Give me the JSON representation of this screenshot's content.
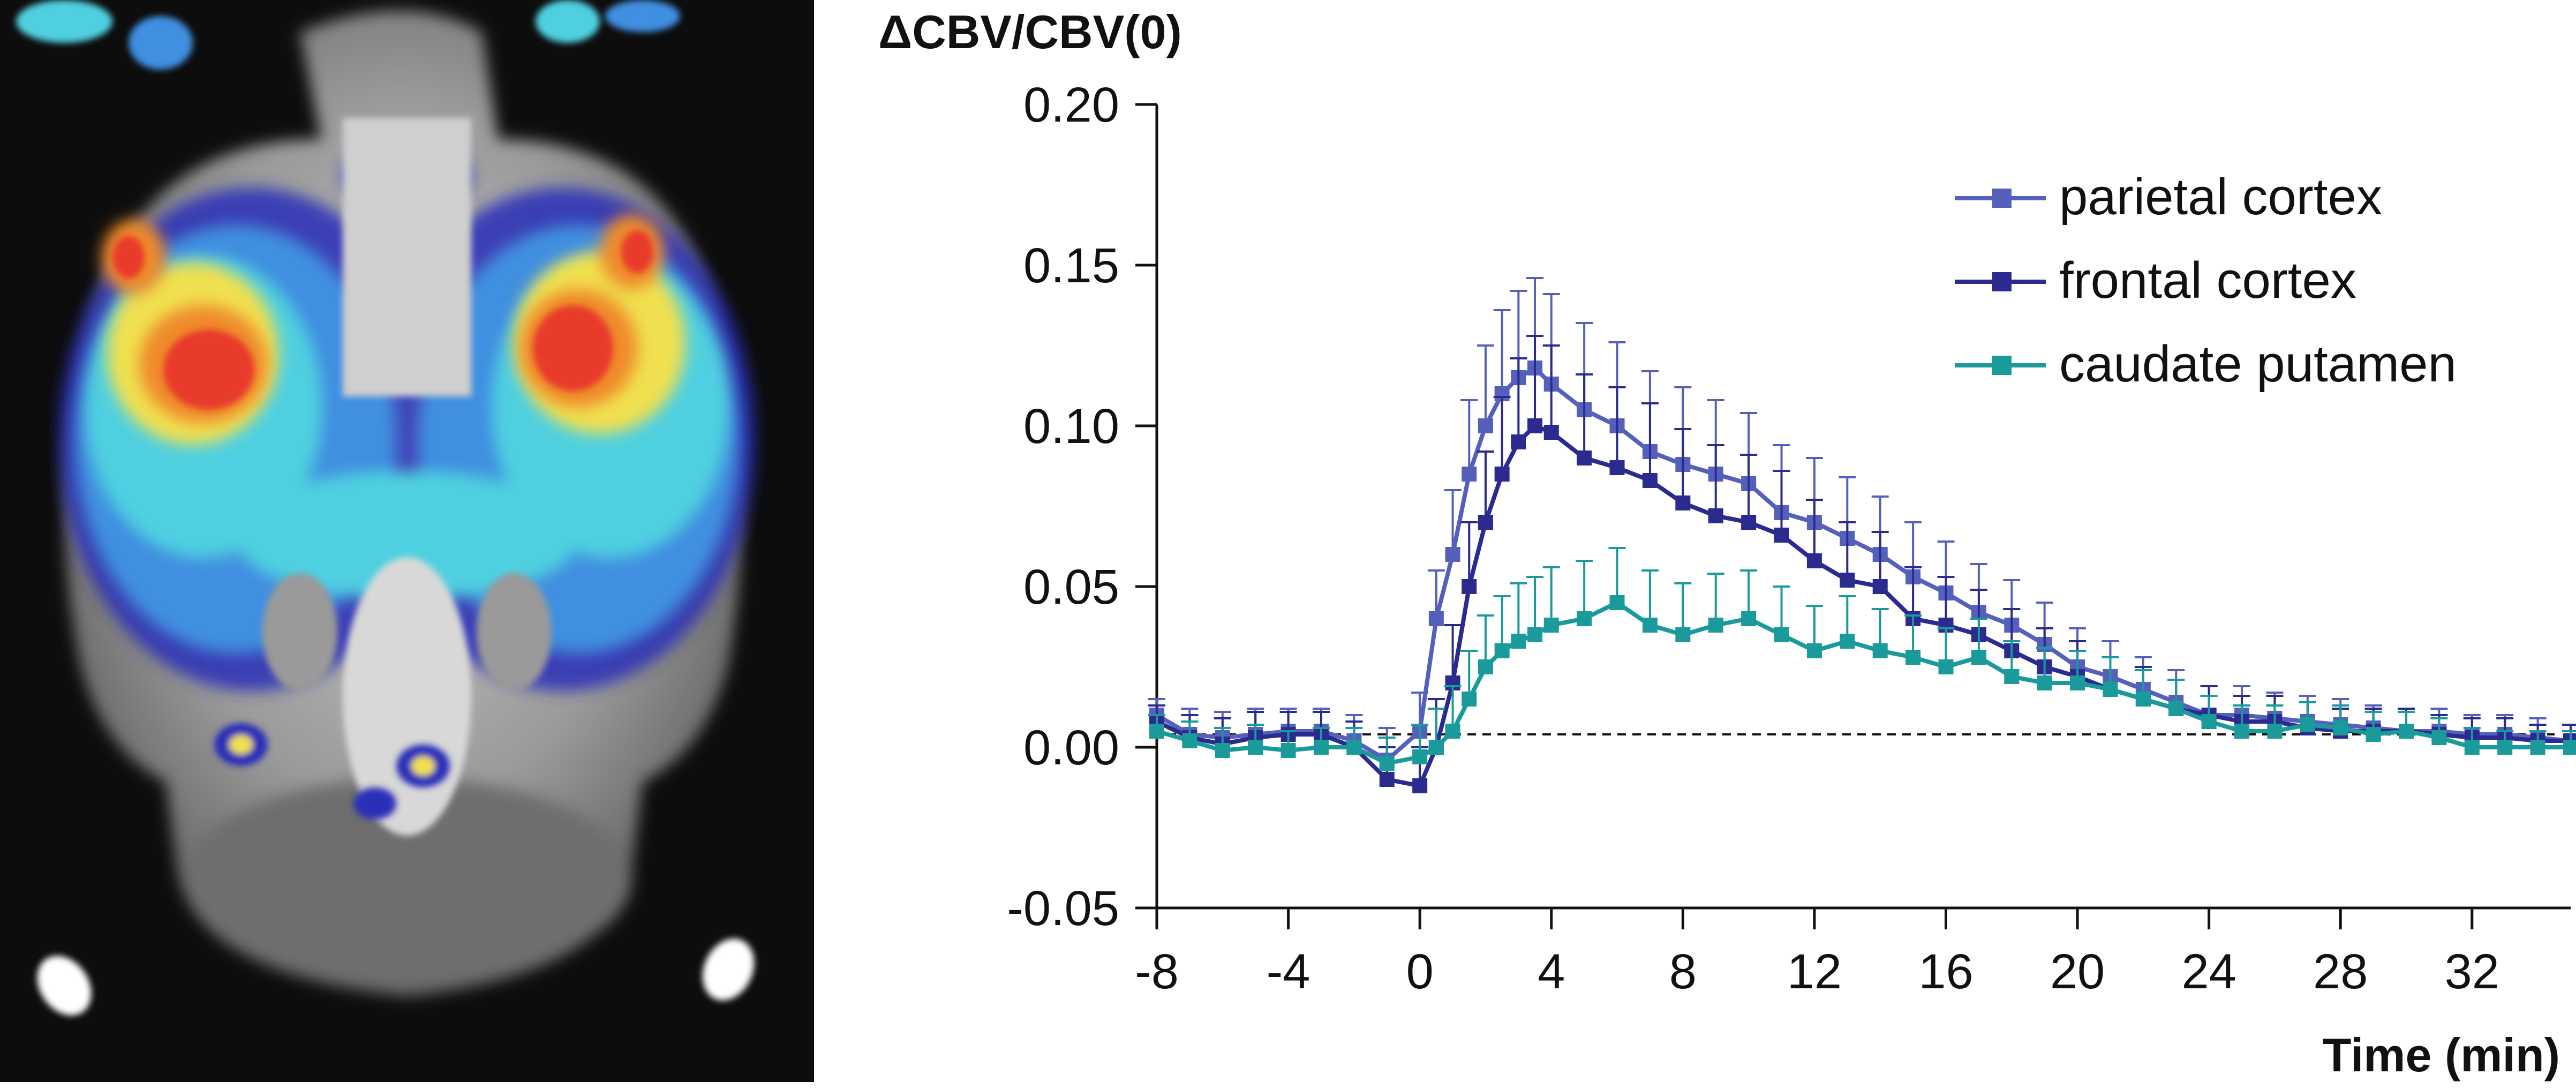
{
  "chart_data": {
    "type": "line",
    "ylabel": "ΔCBV/CBV(0)",
    "xlabel": "Time (min)",
    "xlim": [
      -8,
      35
    ],
    "ylim": [
      -0.05,
      0.2
    ],
    "xticks": [
      -8,
      -4,
      0,
      4,
      8,
      12,
      16,
      20,
      24,
      28,
      32
    ],
    "xtick_labels": [
      "-8",
      "-4",
      "0",
      "4",
      "8",
      "12",
      "16",
      "20",
      "24",
      "28",
      "32"
    ],
    "yticks": [
      -0.05,
      0.0,
      0.05,
      0.1,
      0.15,
      0.2
    ],
    "ytick_labels": [
      "-0.05",
      "0.00",
      "0.05",
      "0.10",
      "0.15",
      "0.20"
    ],
    "baseline": 0.004,
    "legend_position": "top-right",
    "grid": false,
    "series": [
      {
        "name": "parietal cortex",
        "color": "#5560bb",
        "points": [
          [
            -8,
            0.01
          ],
          [
            -7,
            0.004
          ],
          [
            -6,
            0.003
          ],
          [
            -5,
            0.004
          ],
          [
            -4,
            0.005
          ],
          [
            -3,
            0.005
          ],
          [
            -2,
            0.002
          ],
          [
            -1,
            -0.004
          ],
          [
            0,
            0.005
          ],
          [
            0.5,
            0.04
          ],
          [
            1,
            0.06
          ],
          [
            1.5,
            0.085
          ],
          [
            2,
            0.1
          ],
          [
            2.5,
            0.11
          ],
          [
            3,
            0.115
          ],
          [
            3.5,
            0.118
          ],
          [
            4,
            0.113
          ],
          [
            5,
            0.105
          ],
          [
            6,
            0.1
          ],
          [
            7,
            0.092
          ],
          [
            8,
            0.088
          ],
          [
            9,
            0.085
          ],
          [
            10,
            0.082
          ],
          [
            11,
            0.073
          ],
          [
            12,
            0.07
          ],
          [
            13,
            0.065
          ],
          [
            14,
            0.06
          ],
          [
            15,
            0.053
          ],
          [
            16,
            0.048
          ],
          [
            17,
            0.042
          ],
          [
            18,
            0.038
          ],
          [
            19,
            0.032
          ],
          [
            20,
            0.025
          ],
          [
            21,
            0.022
          ],
          [
            22,
            0.018
          ],
          [
            23,
            0.014
          ],
          [
            24,
            0.01
          ],
          [
            25,
            0.01
          ],
          [
            26,
            0.009
          ],
          [
            27,
            0.008
          ],
          [
            28,
            0.007
          ],
          [
            29,
            0.006
          ],
          [
            30,
            0.005
          ],
          [
            31,
            0.005
          ],
          [
            32,
            0.004
          ],
          [
            33,
            0.004
          ],
          [
            34,
            0.003
          ],
          [
            35,
            0.002
          ]
        ],
        "errors": [
          0.005,
          0.008,
          0.008,
          0.008,
          0.007,
          0.007,
          0.008,
          0.01,
          0.012,
          0.015,
          0.02,
          0.023,
          0.025,
          0.026,
          0.027,
          0.028,
          0.028,
          0.027,
          0.026,
          0.025,
          0.024,
          0.023,
          0.022,
          0.021,
          0.02,
          0.019,
          0.018,
          0.017,
          0.016,
          0.015,
          0.014,
          0.013,
          0.012,
          0.011,
          0.01,
          0.01,
          0.009,
          0.009,
          0.008,
          0.008,
          0.008,
          0.007,
          0.007,
          0.007,
          0.006,
          0.006,
          0.006,
          0.005
        ]
      },
      {
        "name": "frontal cortex",
        "color": "#2a2a8f",
        "points": [
          [
            -8,
            0.008
          ],
          [
            -7,
            0.003
          ],
          [
            -6,
            0.001
          ],
          [
            -5,
            0.003
          ],
          [
            -4,
            0.004
          ],
          [
            -3,
            0.004
          ],
          [
            -2,
            0.0
          ],
          [
            -1,
            -0.01
          ],
          [
            0,
            -0.012
          ],
          [
            0.5,
            0.0
          ],
          [
            1,
            0.02
          ],
          [
            1.5,
            0.05
          ],
          [
            2,
            0.07
          ],
          [
            2.5,
            0.085
          ],
          [
            3,
            0.095
          ],
          [
            3.5,
            0.1
          ],
          [
            4,
            0.098
          ],
          [
            5,
            0.09
          ],
          [
            6,
            0.087
          ],
          [
            7,
            0.083
          ],
          [
            8,
            0.076
          ],
          [
            9,
            0.072
          ],
          [
            10,
            0.07
          ],
          [
            11,
            0.066
          ],
          [
            12,
            0.058
          ],
          [
            13,
            0.052
          ],
          [
            14,
            0.05
          ],
          [
            15,
            0.04
          ],
          [
            16,
            0.038
          ],
          [
            17,
            0.035
          ],
          [
            18,
            0.03
          ],
          [
            19,
            0.025
          ],
          [
            20,
            0.022
          ],
          [
            21,
            0.018
          ],
          [
            22,
            0.015
          ],
          [
            23,
            0.012
          ],
          [
            24,
            0.01
          ],
          [
            25,
            0.008
          ],
          [
            26,
            0.008
          ],
          [
            27,
            0.006
          ],
          [
            28,
            0.005
          ],
          [
            29,
            0.005
          ],
          [
            30,
            0.005
          ],
          [
            31,
            0.004
          ],
          [
            32,
            0.003
          ],
          [
            33,
            0.003
          ],
          [
            34,
            0.002
          ],
          [
            35,
            0.002
          ]
        ],
        "errors": [
          0.005,
          0.007,
          0.008,
          0.008,
          0.007,
          0.007,
          0.008,
          0.01,
          0.012,
          0.015,
          0.018,
          0.02,
          0.022,
          0.024,
          0.026,
          0.028,
          0.027,
          0.026,
          0.025,
          0.024,
          0.023,
          0.022,
          0.021,
          0.02,
          0.019,
          0.018,
          0.017,
          0.016,
          0.015,
          0.014,
          0.013,
          0.012,
          0.011,
          0.01,
          0.01,
          0.009,
          0.009,
          0.008,
          0.008,
          0.008,
          0.007,
          0.007,
          0.007,
          0.006,
          0.006,
          0.006,
          0.005,
          0.005
        ]
      },
      {
        "name": "caudate putamen",
        "color": "#1a9a9a",
        "points": [
          [
            -8,
            0.005
          ],
          [
            -7,
            0.002
          ],
          [
            -6,
            -0.001
          ],
          [
            -5,
            0.0
          ],
          [
            -4,
            -0.001
          ],
          [
            -3,
            0.0
          ],
          [
            -2,
            0.0
          ],
          [
            -1,
            -0.005
          ],
          [
            0,
            -0.003
          ],
          [
            0.5,
            0.0
          ],
          [
            1,
            0.005
          ],
          [
            1.5,
            0.015
          ],
          [
            2,
            0.025
          ],
          [
            2.5,
            0.03
          ],
          [
            3,
            0.033
          ],
          [
            3.5,
            0.035
          ],
          [
            4,
            0.038
          ],
          [
            5,
            0.04
          ],
          [
            6,
            0.045
          ],
          [
            7,
            0.038
          ],
          [
            8,
            0.035
          ],
          [
            9,
            0.038
          ],
          [
            10,
            0.04
          ],
          [
            11,
            0.035
          ],
          [
            12,
            0.03
          ],
          [
            13,
            0.033
          ],
          [
            14,
            0.03
          ],
          [
            15,
            0.028
          ],
          [
            16,
            0.025
          ],
          [
            17,
            0.028
          ],
          [
            18,
            0.022
          ],
          [
            19,
            0.02
          ],
          [
            20,
            0.02
          ],
          [
            21,
            0.018
          ],
          [
            22,
            0.015
          ],
          [
            23,
            0.012
          ],
          [
            24,
            0.008
          ],
          [
            25,
            0.005
          ],
          [
            26,
            0.005
          ],
          [
            27,
            0.007
          ],
          [
            28,
            0.006
          ],
          [
            29,
            0.004
          ],
          [
            30,
            0.005
          ],
          [
            31,
            0.003
          ],
          [
            32,
            0.0
          ],
          [
            33,
            0.0
          ],
          [
            34,
            0.0
          ],
          [
            35,
            0.0
          ]
        ],
        "errors": [
          0.005,
          0.006,
          0.007,
          0.007,
          0.006,
          0.006,
          0.006,
          0.008,
          0.01,
          0.012,
          0.014,
          0.015,
          0.016,
          0.017,
          0.018,
          0.018,
          0.018,
          0.018,
          0.017,
          0.017,
          0.016,
          0.016,
          0.015,
          0.015,
          0.014,
          0.014,
          0.013,
          0.013,
          0.012,
          0.012,
          0.011,
          0.011,
          0.01,
          0.01,
          0.009,
          0.009,
          0.008,
          0.008,
          0.008,
          0.007,
          0.007,
          0.007,
          0.006,
          0.006,
          0.006,
          0.005,
          0.005,
          0.005
        ]
      }
    ]
  },
  "brain_image": {
    "colormap": [
      "#2a2fb8",
      "#3f8fe0",
      "#4fd0e0",
      "#f0e050",
      "#f08a2a",
      "#e83a2a"
    ]
  }
}
